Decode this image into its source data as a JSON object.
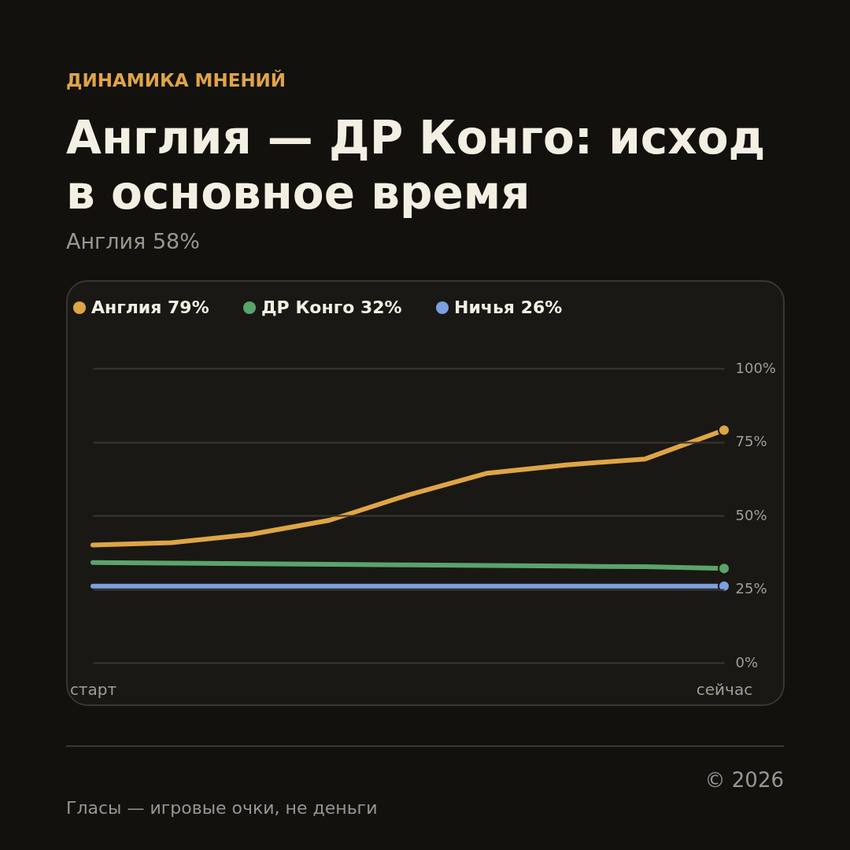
{
  "chart_data": {
    "type": "line",
    "title": "Англия — ДР Конго: исход\nв основное время",
    "subtitle": "Англия 58%",
    "annotations": [
      "ДИНАМИКА МНЕНИЙ",
      "© 2026",
      "Гласы — игровые очки, не деньги"
    ],
    "categories": [
      "старт",
      null,
      null,
      null,
      null,
      null,
      null,
      null,
      "сейчас"
    ],
    "series": [
      {
        "name": "Англия 79%",
        "color": "#dfa545",
        "values": [
          40,
          40.8,
          43.6,
          48.4,
          57,
          64.4,
          67.2,
          69.2,
          79
        ]
      },
      {
        "name": "ДР Конго 32%",
        "color": "#5aa46c",
        "values": [
          34,
          33.8,
          33.6,
          33.4,
          33.2,
          33,
          32.8,
          32.6,
          32
        ]
      },
      {
        "name": "Ничья 26%",
        "color": "#7b9fe0",
        "values": [
          26,
          26,
          26,
          26,
          26,
          26,
          26,
          26,
          26
        ]
      }
    ],
    "ylim": [
      0,
      100
    ],
    "yticks": [
      {
        "value": 0,
        "label": "0%"
      },
      {
        "value": 25,
        "label": "25%"
      },
      {
        "value": 50,
        "label": "50%"
      },
      {
        "value": 75,
        "label": "75%"
      },
      {
        "value": 100,
        "label": "100%"
      }
    ],
    "grid": "y",
    "legend": "top left",
    "marker": "none",
    "line_style": "solid"
  }
}
